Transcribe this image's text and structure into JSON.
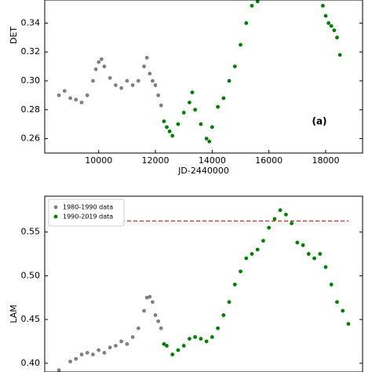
{
  "chart_data": [
    {
      "type": "scatter",
      "xlabel": "JD-2440000",
      "ylabel": "DET",
      "annotation": "(a)",
      "xlim": [
        8100,
        19300
      ],
      "ylim": [
        0.25,
        0.356
      ],
      "xticks": [
        10000,
        12000,
        14000,
        16000,
        18000
      ],
      "yticks": [
        0.26,
        0.28,
        {
          "value": 0.3,
          "label": "0.30"
        },
        0.32,
        0.34
      ],
      "series": [
        {
          "color": "#808080",
          "x": [
            8600,
            8800,
            9000,
            9200,
            9400,
            9600,
            9800,
            9900,
            10000,
            10100,
            10200,
            10400,
            10600,
            10800,
            11000,
            11200,
            11400,
            11600,
            11700,
            11800,
            11900,
            12000,
            12100,
            12200
          ],
          "values": [
            0.29,
            0.293,
            0.288,
            0.287,
            0.285,
            0.29,
            0.3,
            0.308,
            0.313,
            0.315,
            0.31,
            0.302,
            0.297,
            0.295,
            0.3,
            0.297,
            0.3,
            0.31,
            0.316,
            0.305,
            0.3,
            0.297,
            0.29,
            0.283
          ]
        },
        {
          "color": "#008000",
          "x": [
            12300,
            12400,
            12500,
            12600,
            12800,
            13000,
            13200,
            13300,
            13400,
            13600,
            13800,
            13900,
            14000,
            14200,
            14400,
            14600,
            14800,
            15000,
            15200,
            15400,
            15600,
            17900,
            18000,
            18100,
            18200,
            18300,
            18400,
            18500
          ],
          "values": [
            0.272,
            0.268,
            0.265,
            0.262,
            0.27,
            0.278,
            0.285,
            0.292,
            0.28,
            0.27,
            0.26,
            0.258,
            0.268,
            0.282,
            0.288,
            0.3,
            0.31,
            0.325,
            0.34,
            0.352,
            0.355,
            0.352,
            0.345,
            0.34,
            0.338,
            0.335,
            0.33,
            0.318
          ]
        }
      ]
    },
    {
      "type": "scatter",
      "ylabel": "LAM",
      "xlim": [
        8100,
        19300
      ],
      "ylim": [
        0.39,
        0.591
      ],
      "yticks": [
        {
          "value": 0.4,
          "label": "0.40"
        },
        0.45,
        {
          "value": 0.5,
          "label": "0.50"
        },
        0.55
      ],
      "hline": {
        "value": 0.5626,
        "color": "#d62728"
      },
      "legend": "upper left",
      "series": [
        {
          "name": "1980-1990 data",
          "color": "#808080",
          "x": [
            8600,
            9000,
            9200,
            9400,
            9600,
            9800,
            10000,
            10200,
            10400,
            10600,
            10800,
            11000,
            11200,
            11400,
            11600,
            11700,
            11800,
            11900,
            12000,
            12100,
            12200
          ],
          "values": [
            0.392,
            0.402,
            0.405,
            0.41,
            0.412,
            0.41,
            0.415,
            0.412,
            0.418,
            0.42,
            0.425,
            0.422,
            0.43,
            0.44,
            0.46,
            0.475,
            0.476,
            0.47,
            0.455,
            0.448,
            0.44
          ]
        },
        {
          "name": "1990-2019 data",
          "color": "#008000",
          "x": [
            12300,
            12400,
            12600,
            12800,
            13000,
            13200,
            13400,
            13600,
            13800,
            14000,
            14200,
            14400,
            14600,
            14800,
            15000,
            15200,
            15400,
            15600,
            15800,
            16000,
            16200,
            16400,
            16600,
            16800,
            17000,
            17200,
            17400,
            17600,
            17800,
            18000,
            18200,
            18400,
            18600,
            18800
          ],
          "values": [
            0.422,
            0.42,
            0.41,
            0.415,
            0.42,
            0.428,
            0.43,
            0.428,
            0.425,
            0.43,
            0.44,
            0.455,
            0.47,
            0.49,
            0.505,
            0.52,
            0.525,
            0.53,
            0.54,
            0.555,
            0.565,
            0.575,
            0.57,
            0.56,
            0.538,
            0.535,
            0.525,
            0.52,
            0.525,
            0.51,
            0.49,
            0.47,
            0.46,
            0.445
          ]
        }
      ]
    }
  ]
}
